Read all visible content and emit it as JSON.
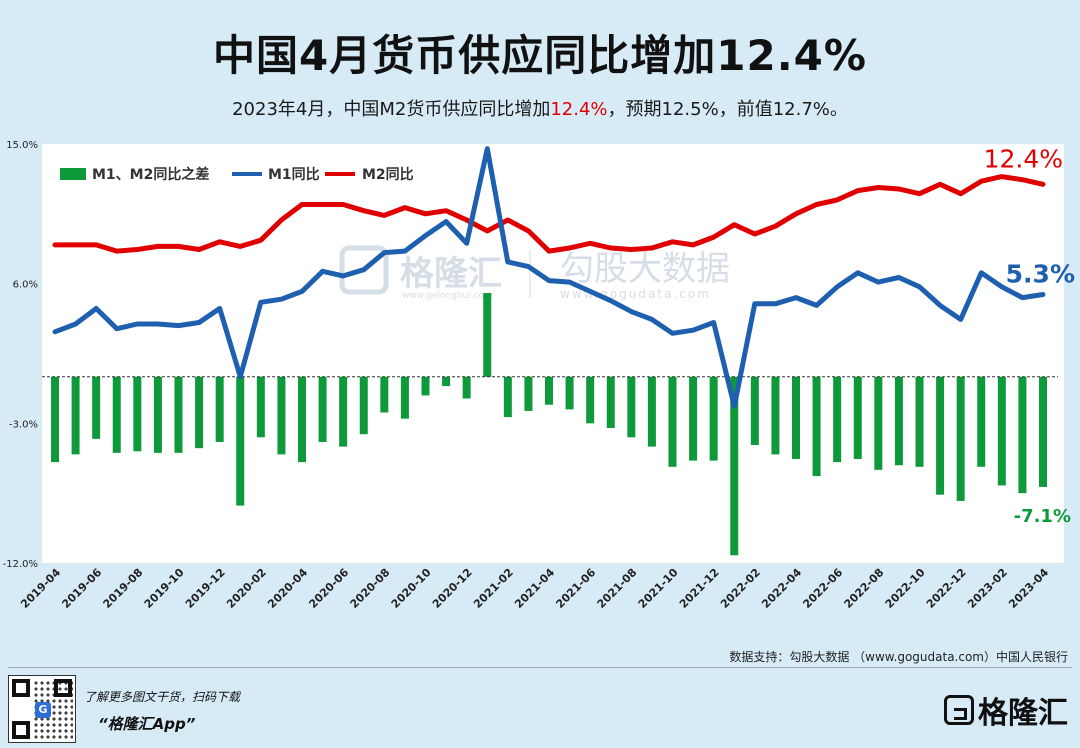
{
  "header": {
    "title": "中国4月货币供应同比增加12.4%",
    "subtitle_pre": "2023年4月，中国M2货币供应同比增加",
    "subtitle_hl": "12.4%",
    "subtitle_post": "，预期12.5%，前值12.7%。"
  },
  "footer": {
    "source": "数据支持：勾股大数据 （www.gogudata.com）中国人民银行",
    "promo_line1": "了解更多图文干货，扫码下载",
    "promo_line2": "“格隆汇App”",
    "logo_text": "格隆汇"
  },
  "chart_data": {
    "type": "bar+line",
    "title": "中国4月货币供应同比增加12.4%",
    "ylim": [
      -12,
      15
    ],
    "yticks": [
      -12,
      -3,
      6,
      15
    ],
    "ytick_labels": [
      "-12.0%",
      "-3.0%",
      "6.0%",
      "15.0%"
    ],
    "categories": [
      "2019-04",
      "2019-05",
      "2019-06",
      "2019-07",
      "2019-08",
      "2019-09",
      "2019-10",
      "2019-11",
      "2019-12",
      "2020-01",
      "2020-02",
      "2020-03",
      "2020-04",
      "2020-05",
      "2020-06",
      "2020-07",
      "2020-08",
      "2020-09",
      "2020-10",
      "2020-11",
      "2020-12",
      "2021-01",
      "2021-02",
      "2021-03",
      "2021-04",
      "2021-05",
      "2021-06",
      "2021-07",
      "2021-08",
      "2021-09",
      "2021-10",
      "2021-11",
      "2021-12",
      "2022-01",
      "2022-02",
      "2022-03",
      "2022-04",
      "2022-05",
      "2022-06",
      "2022-07",
      "2022-08",
      "2022-09",
      "2022-10",
      "2022-11",
      "2022-12",
      "2023-01",
      "2023-02",
      "2023-03",
      "2023-04"
    ],
    "xtick_labels": [
      "2019-04",
      "2019-06",
      "2019-08",
      "2019-10",
      "2019-12",
      "2020-02",
      "2020-04",
      "2020-06",
      "2020-08",
      "2020-10",
      "2020-12",
      "2021-02",
      "2021-04",
      "2021-06",
      "2021-08",
      "2021-10",
      "2021-12",
      "2022-02",
      "2022-04",
      "2022-06",
      "2022-08",
      "2022-10",
      "2022-12",
      "2023-02",
      "2023-04"
    ],
    "legend": [
      "M1、M2同比之差",
      "M1同比",
      "M2同比"
    ],
    "series": [
      {
        "name": "M1、M2同比之差",
        "kind": "bar",
        "color": "#0e9a3a",
        "values": [
          -5.5,
          -5.0,
          -4.0,
          -4.9,
          -4.8,
          -4.9,
          -4.9,
          -4.6,
          -4.2,
          -8.3,
          -3.9,
          -5.0,
          -5.5,
          -4.2,
          -4.5,
          -3.7,
          -2.3,
          -2.7,
          -1.2,
          -0.6,
          -1.4,
          5.4,
          -2.6,
          -2.2,
          -1.8,
          -2.1,
          -3.0,
          -3.3,
          -3.9,
          -4.5,
          -5.8,
          -5.4,
          -5.4,
          -11.5,
          -4.4,
          -5.0,
          -5.3,
          -6.4,
          -5.5,
          -5.3,
          -6.0,
          -5.7,
          -5.8,
          -7.6,
          -8.0,
          -5.8,
          -7.0,
          -7.5,
          -7.1
        ]
      },
      {
        "name": "M1同比",
        "kind": "line",
        "color": "#1e5fb0",
        "values": [
          2.9,
          3.4,
          4.4,
          3.1,
          3.4,
          3.4,
          3.3,
          3.5,
          4.4,
          0.0,
          4.8,
          5.0,
          5.5,
          6.8,
          6.5,
          6.9,
          8.0,
          8.1,
          9.1,
          10.0,
          8.6,
          14.7,
          7.4,
          7.1,
          6.2,
          6.1,
          5.5,
          4.9,
          4.2,
          3.7,
          2.8,
          3.0,
          3.5,
          -1.9,
          4.7,
          4.7,
          5.1,
          4.6,
          5.8,
          6.7,
          6.1,
          6.4,
          5.8,
          4.6,
          3.7,
          6.7,
          5.8,
          5.1,
          5.3
        ]
      },
      {
        "name": "M2同比",
        "kind": "line",
        "color": "#e00000",
        "values": [
          8.5,
          8.5,
          8.5,
          8.1,
          8.2,
          8.4,
          8.4,
          8.2,
          8.7,
          8.4,
          8.8,
          10.1,
          11.1,
          11.1,
          11.1,
          10.7,
          10.4,
          10.9,
          10.5,
          10.7,
          10.1,
          9.4,
          10.1,
          9.4,
          8.1,
          8.3,
          8.6,
          8.3,
          8.2,
          8.3,
          8.7,
          8.5,
          9.0,
          9.8,
          9.2,
          9.7,
          10.5,
          11.1,
          11.4,
          12.0,
          12.2,
          12.1,
          11.8,
          12.4,
          11.8,
          12.6,
          12.9,
          12.7,
          12.4
        ]
      }
    ],
    "annotations": [
      {
        "text": "12.4%",
        "color": "#e00000",
        "series": "M2同比"
      },
      {
        "text": "5.3%",
        "color": "#1e5fb0",
        "series": "M1同比"
      },
      {
        "text": "-7.1%",
        "color": "#0e9a3a",
        "series": "M1、M2同比之差"
      }
    ],
    "watermark": {
      "brand": "格隆汇",
      "brand_url": "www.gelonghui.com",
      "partner": "勾股大数据",
      "partner_url": "www.gogudata.com"
    }
  }
}
